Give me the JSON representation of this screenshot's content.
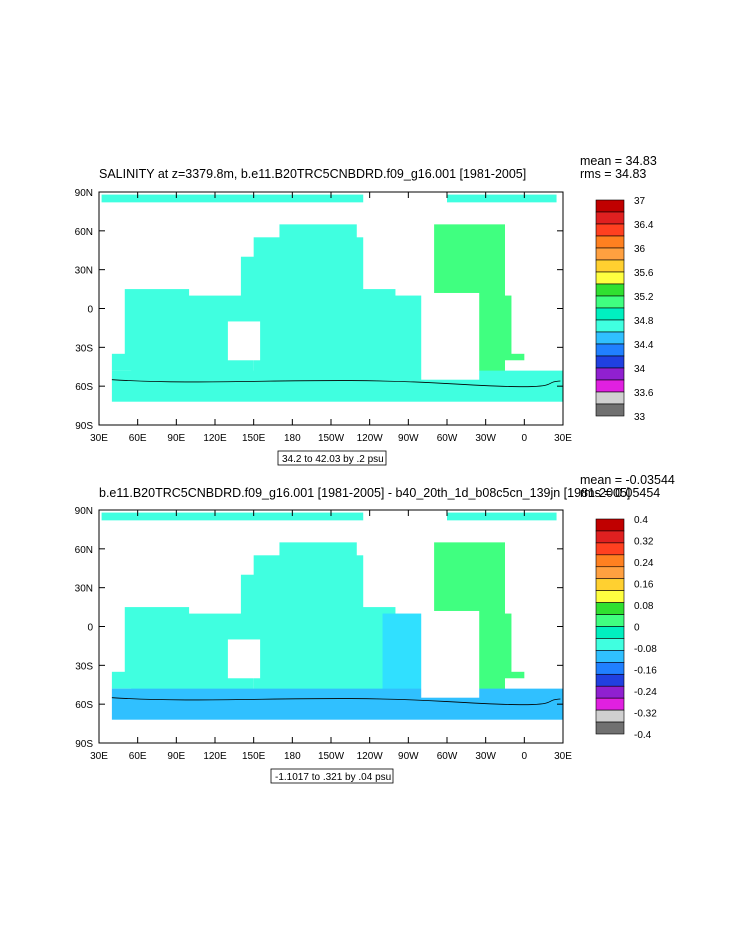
{
  "chart_data": [
    {
      "type": "heatmap",
      "title": "SALINITY at z=3379.8m, b.e11.B20TRC5CNBDRD.f09_g16.001 [1981-2005]",
      "stats": {
        "mean": "mean = 34.83",
        "rms": "rms = 34.83"
      },
      "x_ticks": [
        "30E",
        "60E",
        "90E",
        "120E",
        "150E",
        "180",
        "150W",
        "120W",
        "90W",
        "60W",
        "30W",
        "0",
        "30E"
      ],
      "y_ticks": [
        "90N",
        "60N",
        "30N",
        "0",
        "30S",
        "60S",
        "90S"
      ],
      "xlim": [
        30,
        390
      ],
      "ylim": [
        -90,
        90
      ],
      "colorbar": {
        "labels": [
          "37",
          "36.4",
          "36",
          "35.6",
          "35.2",
          "34.8",
          "34.4",
          "34",
          "33.6",
          "33"
        ],
        "colors": [
          "#c00000",
          "#e02020",
          "#ff4020",
          "#ff8020",
          "#ffa040",
          "#ffd030",
          "#ffff40",
          "#30e030",
          "#40ff80",
          "#00f0c0",
          "#40ffe0",
          "#30c0ff",
          "#2080ff",
          "#2040e0",
          "#9020d0",
          "#e020e0",
          "#d0d0d0",
          "#707070"
        ]
      },
      "note": "34.2 to 42.03 by .2 psu"
    },
    {
      "type": "heatmap",
      "title": "b.e11.B20TRC5CNBDRD.f09_g16.001 [1981-2005] - b40_20th_1d_b08c5cn_139jn [1981-2005]",
      "stats": {
        "mean": "mean = -0.03544",
        "rms": "rms = 0.05454"
      },
      "x_ticks": [
        "30E",
        "60E",
        "90E",
        "120E",
        "150E",
        "180",
        "150W",
        "120W",
        "90W",
        "60W",
        "30W",
        "0",
        "30E"
      ],
      "y_ticks": [
        "90N",
        "60N",
        "30N",
        "0",
        "30S",
        "60S",
        "90S"
      ],
      "xlim": [
        30,
        390
      ],
      "ylim": [
        -90,
        90
      ],
      "colorbar": {
        "labels": [
          "0.4",
          "0.32",
          "0.24",
          "0.16",
          "0.08",
          "0",
          "-0.08",
          "-0.16",
          "-0.24",
          "-0.32",
          "-0.4"
        ],
        "colors": [
          "#c00000",
          "#e02020",
          "#ff4020",
          "#ff8020",
          "#ffa040",
          "#ffd030",
          "#ffff40",
          "#30e030",
          "#40ff80",
          "#00f0c0",
          "#40ffe0",
          "#30c0ff",
          "#2080ff",
          "#2040e0",
          "#9020d0",
          "#e020e0",
          "#d0d0d0",
          "#707070"
        ]
      },
      "note": "-1.1017 to .321 by .04 psu"
    }
  ]
}
